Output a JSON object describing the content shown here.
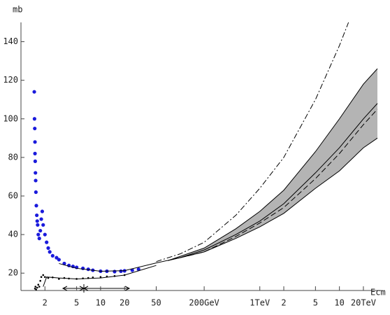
{
  "chart_data": {
    "type": "line",
    "log_x": true,
    "y_label": "mb",
    "x_label": "Ecm",
    "xlim": [
      1,
      30000
    ],
    "ylim": [
      11,
      150
    ],
    "xticks": [
      2,
      5,
      10,
      20,
      50,
      {
        "value": 200,
        "label": "200GeV"
      },
      {
        "value": 1000,
        "label": "1TeV"
      },
      {
        "value": 2000,
        "label": "2"
      },
      {
        "value": 5000,
        "label": "5"
      },
      {
        "value": 10000,
        "label": "10"
      },
      {
        "value": 20000,
        "label": "20TeV"
      }
    ],
    "yticks": [
      20,
      40,
      60,
      80,
      100,
      120,
      140
    ],
    "band_color": "#b4b4b4",
    "series": [
      {
        "color": "#1a1adc",
        "style": "points",
        "x": [
          1.47,
          1.48,
          1.49,
          1.5,
          1.5,
          1.51,
          1.52,
          1.53,
          1.54,
          1.56,
          1.58,
          1.6,
          1.62,
          1.65,
          1.7,
          1.75,
          1.8,
          1.85,
          1.9,
          2.0,
          2.1,
          2.2,
          2.3,
          2.5,
          2.8,
          3,
          3.5,
          4,
          4.5,
          5,
          6,
          7,
          8,
          10,
          12,
          15,
          18,
          20,
          25,
          30
        ],
        "values": [
          114,
          100,
          95,
          88,
          82,
          78,
          72,
          68,
          62,
          55,
          50,
          47,
          45,
          40,
          38,
          42,
          48,
          52,
          45,
          40,
          36,
          33,
          31,
          29,
          28,
          27,
          25,
          24,
          23.5,
          23,
          22.5,
          22,
          21.5,
          21,
          21,
          20.8,
          21,
          21.2,
          21.5,
          22
        ]
      },
      {
        "color": "#000000",
        "style": "points",
        "x": [
          1.5,
          1.52,
          1.55,
          1.6,
          1.65,
          1.7,
          1.75,
          1.8,
          1.9,
          2.0,
          2.2,
          2.5,
          3,
          3.5,
          4,
          5,
          6,
          7,
          8,
          10,
          12,
          15,
          20
        ],
        "values": [
          12,
          13,
          11.5,
          12.5,
          14,
          13,
          16,
          18,
          19,
          18,
          17.5,
          17.8,
          17,
          17.5,
          17.2,
          17,
          17.3,
          17.5,
          17.8,
          18,
          18.3,
          18.5,
          19
        ]
      },
      {
        "color": "#000000",
        "style": "solid",
        "x": [
          1.9,
          2.1,
          3,
          5,
          10,
          20,
          50
        ],
        "values": [
          13,
          18,
          17.5,
          17,
          17.5,
          19,
          24
        ]
      },
      {
        "color": "#000000",
        "style": "solid",
        "x": [
          3,
          5,
          10,
          20,
          50,
          100,
          200,
          500,
          1000,
          2000,
          5000,
          10000,
          20000,
          30000
        ],
        "values": [
          25,
          22.5,
          21,
          21.3,
          25.3,
          28,
          32,
          40,
          47,
          56,
          72,
          85,
          100,
          108
        ]
      },
      {
        "color": "#000000",
        "style": "solid",
        "band": "upper",
        "x": [
          70,
          200,
          500,
          1000,
          2000,
          5000,
          10000,
          20000,
          30000
        ],
        "values": [
          26.5,
          33,
          43,
          52,
          63,
          83,
          100,
          118,
          126
        ]
      },
      {
        "color": "#000000",
        "style": "solid",
        "band": "lower",
        "x": [
          70,
          200,
          500,
          1000,
          2000,
          5000,
          10000,
          20000,
          30000
        ],
        "values": [
          26.5,
          31,
          38,
          44,
          51,
          64,
          73,
          85,
          90
        ]
      },
      {
        "color": "#000000",
        "style": "dashdot",
        "x": [
          50,
          100,
          200,
          500,
          1000,
          2000,
          5000,
          10000,
          13000
        ],
        "values": [
          26,
          30,
          36,
          50,
          64,
          80,
          110,
          138,
          150
        ]
      },
      {
        "color": "#000000",
        "style": "dashed",
        "x": [
          100,
          200,
          500,
          1000,
          2000,
          5000,
          10000,
          20000,
          30000
        ],
        "values": [
          28,
          31,
          39,
          46,
          54,
          69,
          82,
          97,
          105
        ]
      }
    ]
  }
}
